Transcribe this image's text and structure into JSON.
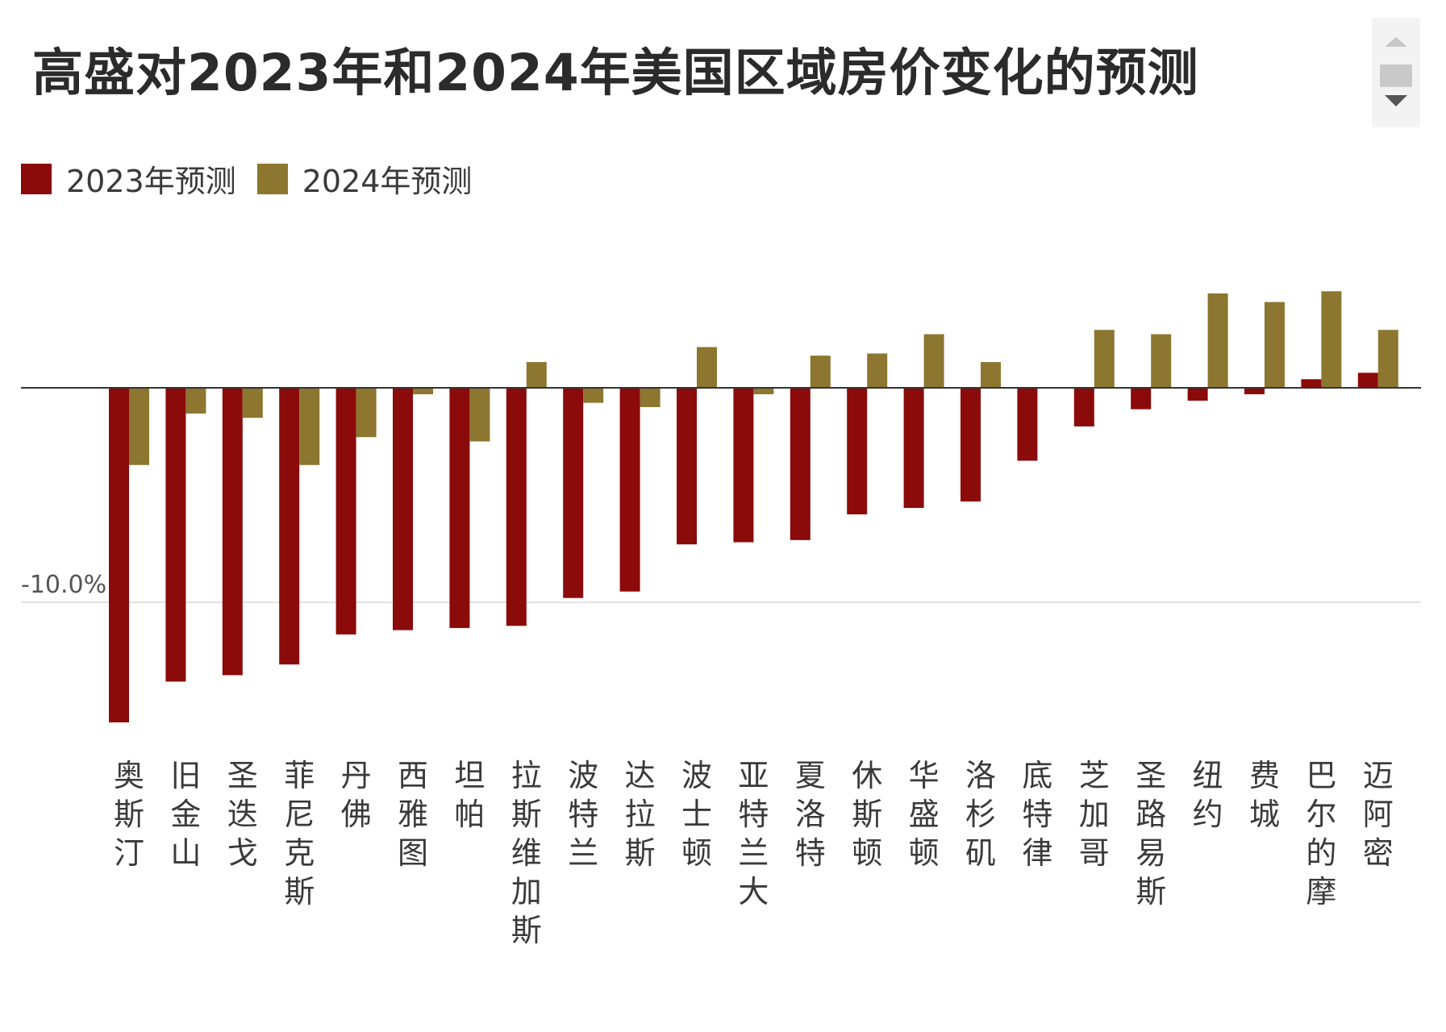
{
  "chart_data": {
    "type": "bar",
    "title": "高盛对2023年和2024年美国区域房价变化的预测",
    "categories": [
      "奥斯汀",
      "旧金山",
      "圣迭戈",
      "菲尼克斯",
      "丹佛",
      "西雅图",
      "坦帕",
      "拉斯维加斯",
      "波特兰",
      "达拉斯",
      "波士顿",
      "亚特兰大",
      "夏洛特",
      "休斯顿",
      "华盛顿",
      "洛杉矶",
      "底特律",
      "芝加哥",
      "圣路易斯",
      "纽约",
      "费城",
      "巴尔的摩",
      "迈阿密"
    ],
    "series": [
      {
        "name": "2023年预测",
        "color": "#8b0a0a",
        "values": [
          -15.6,
          -13.7,
          -13.4,
          -12.9,
          -11.5,
          -11.3,
          -11.2,
          -11.1,
          -9.8,
          -9.5,
          -7.3,
          -7.2,
          -7.1,
          -5.9,
          -5.6,
          -5.3,
          -3.4,
          -1.8,
          -1.0,
          -0.6,
          -0.3,
          0.4,
          0.7
        ]
      },
      {
        "name": "2024年预测",
        "color": "#8c7630",
        "values": [
          -3.6,
          -1.2,
          -1.4,
          -3.6,
          -2.3,
          -0.3,
          -2.5,
          1.2,
          -0.7,
          -0.9,
          1.9,
          -0.3,
          1.5,
          1.6,
          2.5,
          1.2,
          0,
          2.7,
          2.5,
          4.4,
          4.0,
          4.5,
          2.7
        ]
      }
    ],
    "y_tick_labels": [
      {
        "value": -10,
        "label": "-10.0%"
      }
    ],
    "ylim": [
      -16.5,
      6.2
    ],
    "gridlines": true,
    "legend_position": "top-left"
  },
  "scroll_control": {
    "up_icon": "triangle-up-icon",
    "down_icon": "triangle-down-icon"
  }
}
